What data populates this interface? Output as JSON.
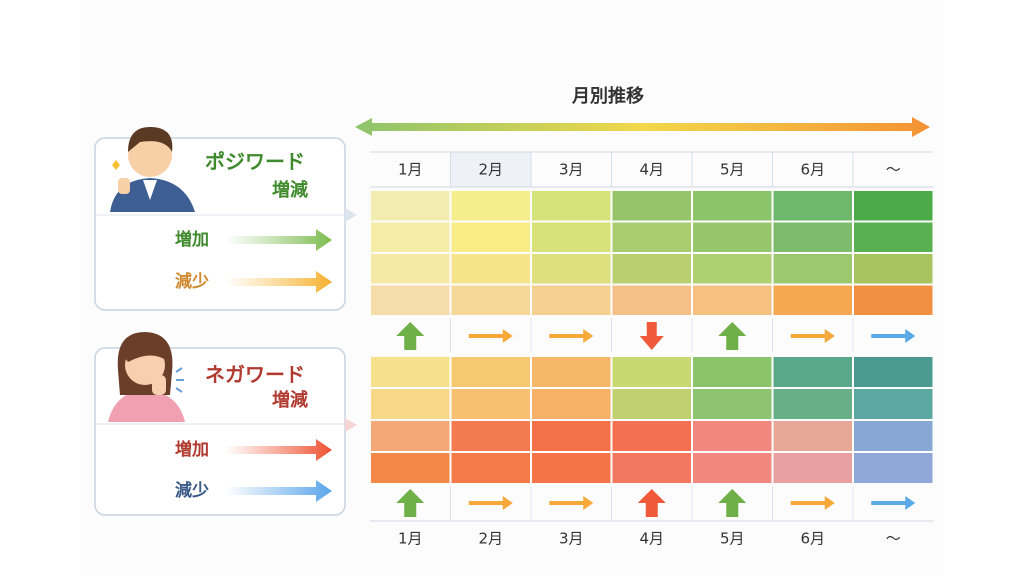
{
  "title": "月別推移",
  "months_top": [
    "1月",
    "2月",
    "3月",
    "4月",
    "5月",
    "6月",
    "～"
  ],
  "months_bottom": [
    "1月",
    "2月",
    "3月",
    "4月",
    "5月",
    "6月",
    "～"
  ],
  "positive": {
    "label": "ポジワード",
    "sub": "増減",
    "increase": "増加",
    "decrease": "減少"
  },
  "negative": {
    "label": "ネガワード",
    "sub": "増減",
    "increase": "増加",
    "decrease": "減少"
  }
}
